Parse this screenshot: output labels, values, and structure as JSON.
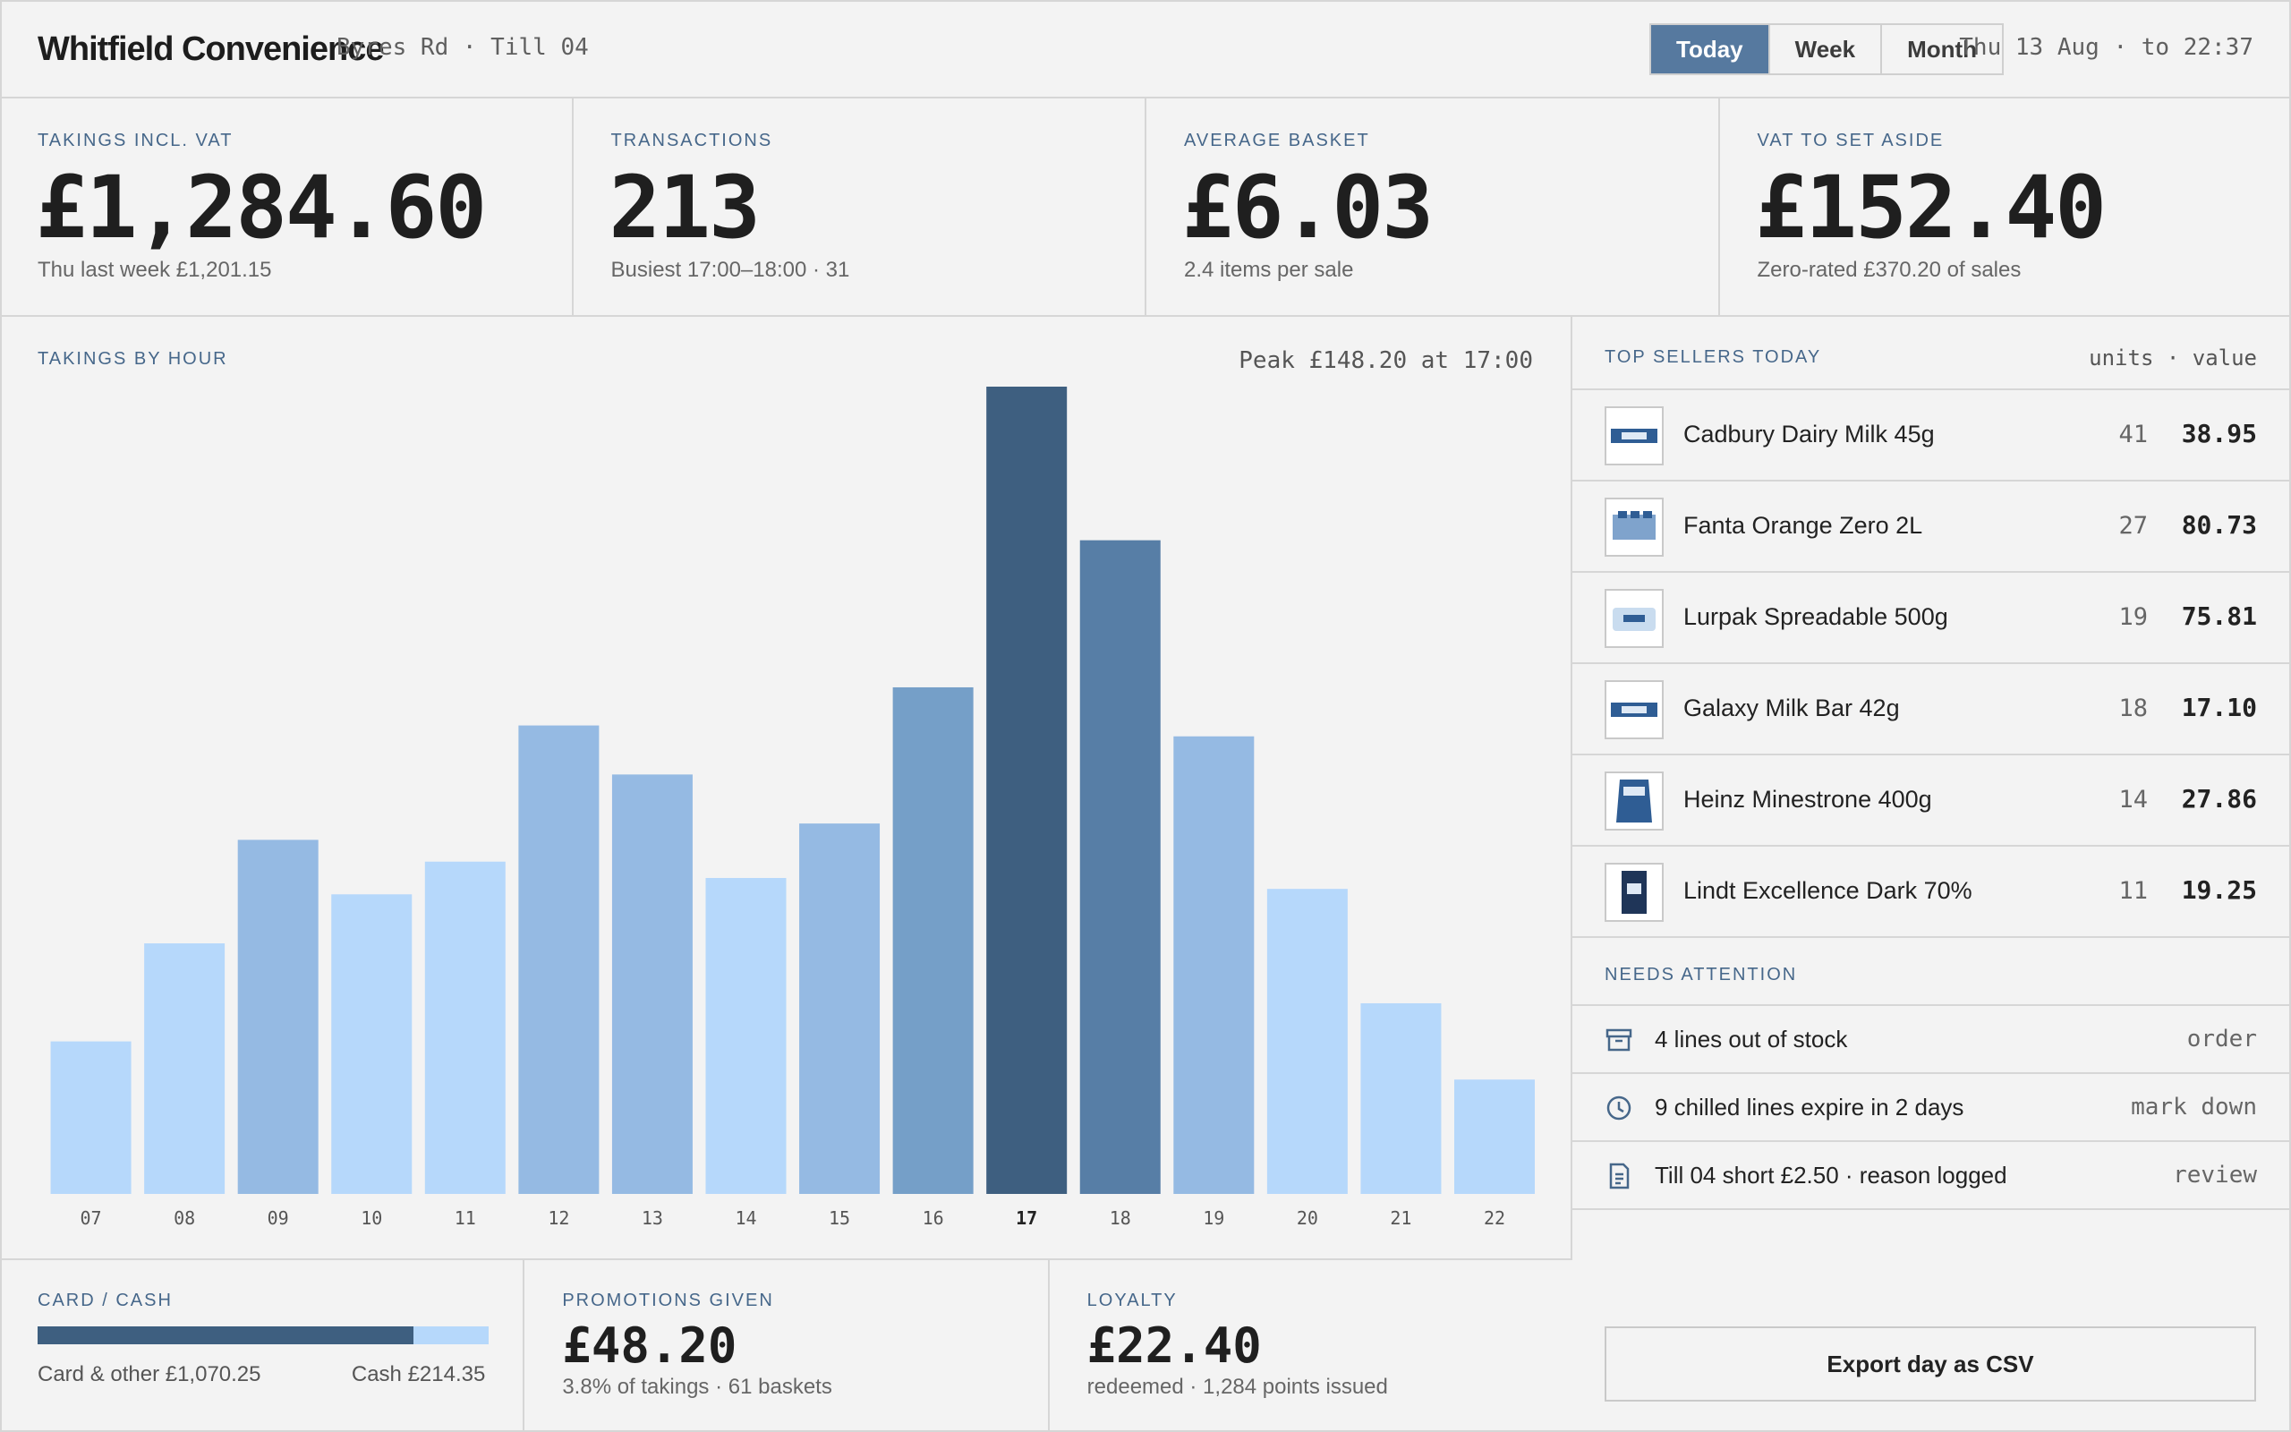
{
  "header": {
    "brand": "Whitfield Convenience",
    "location": "Byres Rd · Till 04",
    "ranges": [
      "Today",
      "Week",
      "Month"
    ],
    "active_range": "Today",
    "date": "Thu 13 Aug · to 22:37"
  },
  "kpis": [
    {
      "label": "TAKINGS INCL. VAT",
      "value": "£1,284.60",
      "sub": "Thu last week £1,201.15"
    },
    {
      "label": "TRANSACTIONS",
      "value": "213",
      "sub": "Busiest 17:00–18:00 · 31"
    },
    {
      "label": "AVERAGE BASKET",
      "value": "£6.03",
      "sub": "2.4 items per sale"
    },
    {
      "label": "VAT TO SET ASIDE",
      "value": "£152.40",
      "sub": "Zero-rated £370.20 of sales"
    }
  ],
  "chart_data": {
    "type": "bar",
    "title": "TAKINGS BY HOUR",
    "annotation": "Peak £148.20 at 17:00",
    "categories": [
      "07",
      "08",
      "09",
      "10",
      "11",
      "12",
      "13",
      "14",
      "15",
      "16",
      "17",
      "18",
      "19",
      "20",
      "21",
      "22"
    ],
    "values": [
      28,
      46,
      65,
      55,
      61,
      86,
      77,
      58,
      68,
      93,
      148.2,
      120,
      84,
      56,
      35,
      21
    ],
    "highlight": "17",
    "ylim": [
      0,
      148.2
    ],
    "colors": {
      "low": "#b6d8fb",
      "mid": "#95bae3",
      "high": "#759fc8",
      "higher": "#577ea6",
      "peak": "#3e5f80"
    }
  },
  "payments": {
    "label": "CARD / CASH",
    "card_fraction": 0.833,
    "card_text": "Card & other £1,070.25",
    "cash_text": "Cash £214.35"
  },
  "promotions": {
    "label": "PROMOTIONS GIVEN",
    "value": "£48.20",
    "sub": "3.8% of takings · 61 baskets"
  },
  "loyalty": {
    "label": "LOYALTY",
    "value": "£22.40",
    "sub": "redeemed · 1,284 points issued"
  },
  "top_sellers": {
    "label": "TOP SELLERS TODAY",
    "columns": "units · value",
    "items": [
      {
        "name": "Cadbury Dairy Milk 45g",
        "units": "41",
        "value": "38.95",
        "icon": "chocolate-bar-icon"
      },
      {
        "name": "Fanta Orange Zero 2L",
        "units": "27",
        "value": "80.73",
        "icon": "drink-pack-icon"
      },
      {
        "name": "Lurpak Spreadable 500g",
        "units": "19",
        "value": "75.81",
        "icon": "butter-tub-icon"
      },
      {
        "name": "Galaxy Milk Bar 42g",
        "units": "18",
        "value": "17.10",
        "icon": "chocolate-bar-icon"
      },
      {
        "name": "Heinz Minestrone 400g",
        "units": "14",
        "value": "27.86",
        "icon": "soup-pouch-icon"
      },
      {
        "name": "Lindt Excellence Dark 70%",
        "units": "11",
        "value": "19.25",
        "icon": "chocolate-box-icon"
      }
    ]
  },
  "attention": {
    "label": "NEEDS ATTENTION",
    "items": [
      {
        "text": "4 lines out of stock",
        "action": "order",
        "icon": "archive-box-icon"
      },
      {
        "text": "9 chilled lines expire in 2 days",
        "action": "mark down",
        "icon": "clock-icon"
      },
      {
        "text": "Till 04 short £2.50 · reason logged",
        "action": "review",
        "icon": "receipt-icon"
      }
    ]
  },
  "export_label": "Export day as CSV"
}
